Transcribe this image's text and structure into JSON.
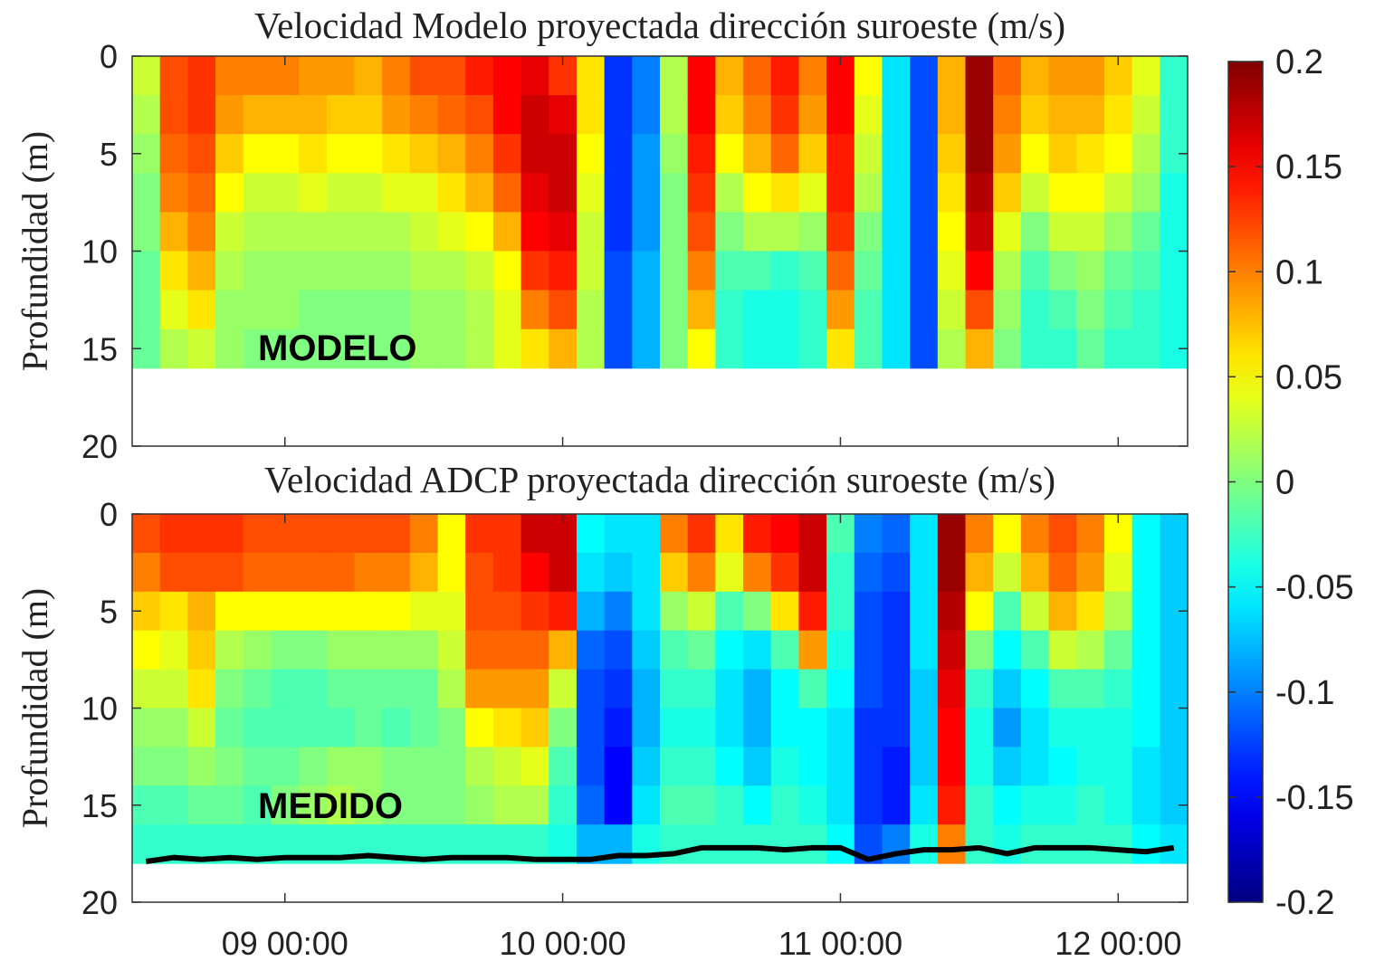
{
  "chart_data": [
    {
      "type": "heatmap",
      "title": "Velocidad Modelo proyectada dirección suroeste (m/s)",
      "ylabel": "Profundidad (m)",
      "annotation": "MODELO",
      "xlim": [
        8.45,
        12.25
      ],
      "xticks": [
        9,
        10,
        11,
        12
      ],
      "ylim": [
        20,
        0
      ],
      "yticks": [
        0,
        5,
        10,
        15,
        20
      ],
      "x": [
        8.5,
        8.6,
        8.7,
        8.8,
        8.9,
        9.0,
        9.1,
        9.2,
        9.3,
        9.4,
        9.5,
        9.6,
        9.7,
        9.8,
        9.9,
        10.0,
        10.1,
        10.2,
        10.3,
        10.4,
        10.5,
        10.6,
        10.7,
        10.8,
        10.9,
        11.0,
        11.1,
        11.2,
        11.3,
        11.4,
        11.5,
        11.6,
        11.7,
        11.8,
        11.9,
        12.0,
        12.1,
        12.2
      ],
      "y": [
        1,
        3,
        5,
        7,
        9,
        11,
        13,
        15
      ],
      "values": [
        [
          0.03,
          0.02,
          0.01,
          0.0,
          0.0,
          -0.01,
          -0.01,
          -0.01
        ],
        [
          0.12,
          0.12,
          0.11,
          0.1,
          0.08,
          0.06,
          0.04,
          0.02
        ],
        [
          0.13,
          0.13,
          0.12,
          0.11,
          0.1,
          0.08,
          0.06,
          0.03
        ],
        [
          0.1,
          0.09,
          0.07,
          0.05,
          0.03,
          0.02,
          0.01,
          0.01
        ],
        [
          0.1,
          0.08,
          0.05,
          0.03,
          0.02,
          0.01,
          0.01,
          0.0
        ],
        [
          0.1,
          0.08,
          0.05,
          0.03,
          0.02,
          0.01,
          0.01,
          0.0
        ],
        [
          0.09,
          0.08,
          0.06,
          0.04,
          0.02,
          0.01,
          0.0,
          0.0
        ],
        [
          0.09,
          0.07,
          0.05,
          0.03,
          0.02,
          0.01,
          0.0,
          0.0
        ],
        [
          0.08,
          0.07,
          0.05,
          0.03,
          0.02,
          0.01,
          0.0,
          0.0
        ],
        [
          0.1,
          0.09,
          0.06,
          0.04,
          0.02,
          0.01,
          0.0,
          0.0
        ],
        [
          0.12,
          0.1,
          0.07,
          0.04,
          0.03,
          0.02,
          0.01,
          0.01
        ],
        [
          0.12,
          0.11,
          0.08,
          0.06,
          0.04,
          0.02,
          0.01,
          0.01
        ],
        [
          0.14,
          0.12,
          0.1,
          0.08,
          0.05,
          0.03,
          0.02,
          0.02
        ],
        [
          0.15,
          0.15,
          0.13,
          0.11,
          0.08,
          0.05,
          0.04,
          0.04
        ],
        [
          0.16,
          0.17,
          0.17,
          0.16,
          0.15,
          0.13,
          0.1,
          0.06
        ],
        [
          0.13,
          0.16,
          0.17,
          0.17,
          0.16,
          0.14,
          0.12,
          0.08
        ],
        [
          0.06,
          0.06,
          0.05,
          0.04,
          0.03,
          0.03,
          0.02,
          0.02
        ],
        [
          -0.13,
          -0.13,
          -0.13,
          -0.13,
          -0.13,
          -0.12,
          -0.12,
          -0.12
        ],
        [
          -0.1,
          -0.1,
          -0.09,
          -0.09,
          -0.09,
          -0.08,
          -0.08,
          -0.08
        ],
        [
          0.02,
          0.02,
          0.01,
          0.0,
          0.0,
          0.0,
          0.0,
          0.0
        ],
        [
          0.15,
          0.15,
          0.14,
          0.13,
          0.12,
          0.1,
          0.08,
          0.05
        ],
        [
          0.08,
          0.07,
          0.05,
          0.02,
          0.0,
          -0.02,
          -0.03,
          -0.03
        ],
        [
          0.11,
          0.1,
          0.08,
          0.05,
          0.02,
          -0.02,
          -0.04,
          -0.04
        ],
        [
          0.14,
          0.13,
          0.11,
          0.06,
          0.02,
          -0.03,
          -0.04,
          -0.04
        ],
        [
          0.1,
          0.09,
          0.07,
          0.04,
          0.01,
          -0.02,
          -0.03,
          -0.03
        ],
        [
          0.15,
          0.15,
          0.14,
          0.14,
          0.13,
          0.11,
          0.09,
          0.06
        ],
        [
          0.05,
          0.04,
          0.03,
          0.02,
          0.0,
          -0.01,
          -0.02,
          -0.02
        ],
        [
          -0.06,
          -0.06,
          -0.06,
          -0.06,
          -0.06,
          -0.06,
          -0.06,
          -0.06
        ],
        [
          -0.12,
          -0.12,
          -0.12,
          -0.12,
          -0.12,
          -0.12,
          -0.12,
          -0.12
        ],
        [
          0.08,
          0.08,
          0.07,
          0.06,
          0.05,
          0.04,
          0.03,
          0.02
        ],
        [
          0.19,
          0.19,
          0.19,
          0.18,
          0.17,
          0.15,
          0.12,
          0.08
        ],
        [
          0.11,
          0.1,
          0.09,
          0.07,
          0.04,
          0.02,
          0.01,
          0.0
        ],
        [
          0.08,
          0.07,
          0.05,
          0.03,
          0.0,
          -0.02,
          -0.03,
          -0.03
        ],
        [
          0.09,
          0.08,
          0.07,
          0.05,
          0.03,
          0.0,
          -0.02,
          -0.03
        ],
        [
          0.09,
          0.08,
          0.06,
          0.05,
          0.03,
          0.01,
          0.0,
          -0.01
        ],
        [
          0.07,
          0.06,
          0.05,
          0.03,
          0.01,
          -0.01,
          -0.02,
          -0.03
        ],
        [
          0.04,
          0.03,
          0.02,
          0.01,
          -0.01,
          -0.02,
          -0.03,
          -0.03
        ],
        [
          -0.03,
          -0.03,
          -0.03,
          -0.04,
          -0.04,
          -0.04,
          -0.04,
          -0.04
        ]
      ]
    },
    {
      "type": "heatmap",
      "title": "Velocidad ADCP proyectada dirección suroeste (m/s)",
      "ylabel": "Profundidad (m)",
      "annotation": "MEDIDO",
      "xlim": [
        8.45,
        12.25
      ],
      "xticks": [
        {
          "value": 9,
          "label": "09 00:00"
        },
        {
          "value": 10,
          "label": "10 00:00"
        },
        {
          "value": 11,
          "label": "11 00:00"
        },
        {
          "value": 12,
          "label": "12 00:00"
        }
      ],
      "ylim": [
        20,
        0
      ],
      "yticks": [
        0,
        5,
        10,
        15,
        20
      ],
      "x": [
        8.5,
        8.6,
        8.7,
        8.8,
        8.9,
        9.0,
        9.1,
        9.2,
        9.3,
        9.4,
        9.5,
        9.6,
        9.7,
        9.8,
        9.9,
        10.0,
        10.1,
        10.2,
        10.3,
        10.4,
        10.5,
        10.6,
        10.7,
        10.8,
        10.9,
        11.0,
        11.1,
        11.2,
        11.3,
        11.4,
        11.5,
        11.6,
        11.7,
        11.8,
        11.9,
        12.0,
        12.1,
        12.2
      ],
      "y": [
        1,
        3,
        5,
        7,
        9,
        11,
        13,
        15,
        17
      ],
      "values": [
        [
          0.12,
          0.1,
          0.07,
          0.05,
          0.03,
          0.01,
          0.0,
          -0.02,
          -0.03
        ],
        [
          0.13,
          0.12,
          0.06,
          0.04,
          0.03,
          0.01,
          0.0,
          -0.02,
          -0.03
        ],
        [
          0.13,
          0.12,
          0.08,
          0.07,
          0.06,
          0.03,
          0.01,
          -0.01,
          -0.03
        ],
        [
          0.13,
          0.12,
          0.05,
          0.02,
          0.0,
          -0.01,
          0.0,
          -0.01,
          -0.03
        ],
        [
          0.12,
          0.11,
          0.05,
          0.01,
          -0.01,
          -0.02,
          -0.01,
          -0.02,
          -0.03
        ],
        [
          0.12,
          0.11,
          0.05,
          0.0,
          -0.02,
          -0.02,
          -0.01,
          0.0,
          -0.03
        ],
        [
          0.12,
          0.11,
          0.05,
          0.0,
          -0.02,
          -0.02,
          0.0,
          0.01,
          -0.03
        ],
        [
          0.12,
          0.11,
          0.05,
          0.01,
          -0.01,
          -0.02,
          0.01,
          0.02,
          -0.03
        ],
        [
          0.12,
          0.1,
          0.05,
          0.01,
          -0.01,
          -0.01,
          0.01,
          0.01,
          -0.03
        ],
        [
          0.12,
          0.1,
          0.05,
          0.01,
          -0.01,
          -0.02,
          0.0,
          0.0,
          -0.03
        ],
        [
          0.1,
          0.08,
          0.04,
          0.01,
          -0.01,
          -0.01,
          0.0,
          0.0,
          -0.03
        ],
        [
          0.05,
          0.05,
          0.04,
          0.03,
          0.02,
          0.0,
          0.0,
          0.0,
          -0.03
        ],
        [
          0.13,
          0.12,
          0.12,
          0.11,
          0.09,
          0.05,
          0.02,
          0.01,
          -0.03
        ],
        [
          0.13,
          0.13,
          0.12,
          0.11,
          0.09,
          0.06,
          0.03,
          0.02,
          -0.03
        ],
        [
          0.17,
          0.15,
          0.13,
          0.11,
          0.09,
          0.07,
          0.04,
          0.02,
          -0.03
        ],
        [
          0.17,
          0.17,
          0.14,
          0.08,
          0.03,
          0.0,
          -0.02,
          -0.03,
          -0.04
        ],
        [
          -0.05,
          -0.06,
          -0.08,
          -0.11,
          -0.12,
          -0.12,
          -0.12,
          -0.11,
          -0.08
        ],
        [
          -0.06,
          -0.07,
          -0.1,
          -0.12,
          -0.13,
          -0.14,
          -0.15,
          -0.15,
          -0.08
        ],
        [
          -0.06,
          -0.06,
          -0.06,
          -0.07,
          -0.08,
          -0.08,
          -0.07,
          -0.06,
          -0.04
        ],
        [
          0.1,
          0.07,
          0.01,
          -0.02,
          -0.03,
          -0.04,
          -0.03,
          -0.02,
          -0.03
        ],
        [
          0.13,
          0.1,
          0.03,
          -0.01,
          -0.03,
          -0.04,
          -0.03,
          -0.02,
          -0.03
        ],
        [
          0.06,
          0.04,
          -0.02,
          -0.05,
          -0.06,
          -0.06,
          -0.05,
          -0.03,
          -0.03
        ],
        [
          0.14,
          0.1,
          0.0,
          -0.06,
          -0.08,
          -0.08,
          -0.07,
          -0.05,
          -0.03
        ],
        [
          0.15,
          0.13,
          0.06,
          -0.02,
          -0.05,
          -0.05,
          -0.04,
          -0.03,
          -0.03
        ],
        [
          0.17,
          0.17,
          0.14,
          0.09,
          -0.02,
          -0.05,
          -0.05,
          -0.04,
          -0.03
        ],
        [
          -0.02,
          -0.03,
          -0.03,
          -0.04,
          -0.05,
          -0.06,
          -0.06,
          -0.06,
          -0.05
        ],
        [
          -0.1,
          -0.11,
          -0.12,
          -0.12,
          -0.12,
          -0.13,
          -0.13,
          -0.13,
          -0.12
        ],
        [
          -0.11,
          -0.12,
          -0.13,
          -0.13,
          -0.13,
          -0.13,
          -0.14,
          -0.14,
          -0.1
        ],
        [
          -0.06,
          -0.06,
          -0.06,
          -0.06,
          -0.07,
          -0.07,
          -0.07,
          -0.06,
          -0.04
        ],
        [
          0.19,
          0.19,
          0.18,
          0.17,
          0.16,
          0.15,
          0.15,
          0.14,
          0.1
        ],
        [
          0.1,
          0.08,
          0.05,
          0.0,
          -0.03,
          -0.04,
          -0.04,
          -0.03,
          -0.03
        ],
        [
          0.05,
          0.03,
          -0.02,
          -0.05,
          -0.07,
          -0.09,
          -0.07,
          -0.05,
          -0.04
        ],
        [
          0.1,
          0.08,
          0.03,
          -0.02,
          -0.05,
          -0.06,
          -0.06,
          -0.04,
          -0.03
        ],
        [
          0.12,
          0.11,
          0.08,
          0.03,
          -0.02,
          -0.04,
          -0.05,
          -0.04,
          -0.03
        ],
        [
          0.1,
          0.09,
          0.06,
          0.02,
          -0.02,
          -0.04,
          -0.04,
          -0.03,
          -0.03
        ],
        [
          0.05,
          0.04,
          0.02,
          -0.01,
          -0.03,
          -0.04,
          -0.04,
          -0.04,
          -0.03
        ],
        [
          -0.05,
          -0.05,
          -0.05,
          -0.05,
          -0.05,
          -0.05,
          -0.06,
          -0.06,
          -0.05
        ],
        [
          -0.07,
          -0.07,
          -0.07,
          -0.07,
          -0.07,
          -0.07,
          -0.07,
          -0.07,
          -0.06
        ]
      ],
      "bottom": [
        17.9,
        17.7,
        17.8,
        17.7,
        17.8,
        17.7,
        17.7,
        17.7,
        17.6,
        17.7,
        17.8,
        17.7,
        17.7,
        17.7,
        17.8,
        17.8,
        17.8,
        17.6,
        17.6,
        17.5,
        17.2,
        17.2,
        17.2,
        17.3,
        17.2,
        17.2,
        17.8,
        17.5,
        17.3,
        17.3,
        17.2,
        17.5,
        17.2,
        17.2,
        17.2,
        17.3,
        17.4,
        17.2
      ]
    },
    {
      "type": "colorbar",
      "colormap": "jet",
      "clim": [
        -0.2,
        0.2
      ],
      "ticks": [
        -0.2,
        -0.15,
        -0.1,
        -0.05,
        0,
        0.05,
        0.1,
        0.15,
        0.2
      ]
    }
  ]
}
